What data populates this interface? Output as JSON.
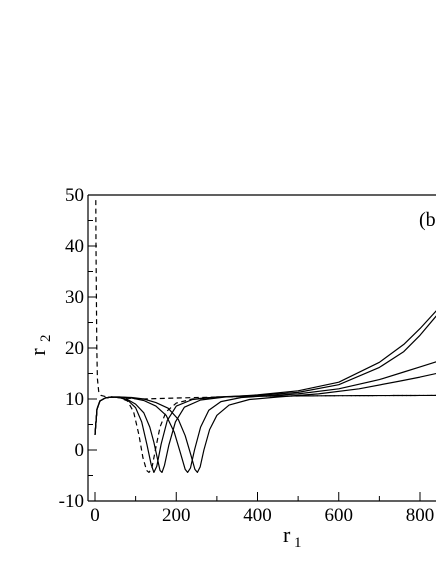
{
  "chart_data": {
    "type": "line",
    "title": "",
    "panel_label": "(b",
    "xlabel": "r",
    "xlabel_subscript": "1",
    "ylabel": "r",
    "ylabel_subscript": "2",
    "xlim": [
      -20,
      840
    ],
    "ylim": [
      -10,
      50
    ],
    "x_ticks": [
      0,
      200,
      400,
      600,
      800
    ],
    "x_tick_labels": [
      "0",
      "200",
      "400",
      "600",
      "800"
    ],
    "y_ticks": [
      -10,
      0,
      10,
      20,
      30,
      40,
      50
    ],
    "y_tick_labels": [
      "-10",
      "0",
      "10",
      "20",
      "30",
      "40",
      "50"
    ],
    "grid": false,
    "series": [
      {
        "style": "dashed",
        "points": [
          [
            2,
            49
          ],
          [
            2.5,
            40
          ],
          [
            3.5,
            30
          ],
          [
            4.5,
            20
          ],
          [
            6,
            14
          ],
          [
            9,
            11.5
          ],
          [
            15,
            10.7
          ],
          [
            30,
            10.4
          ],
          [
            50,
            10.3
          ],
          [
            70,
            10.2
          ],
          [
            90,
            10.1
          ],
          [
            120,
            10.0
          ],
          [
            200,
            10.2
          ],
          [
            400,
            10.55
          ],
          [
            600,
            10.65
          ],
          [
            840,
            10.7
          ]
        ]
      },
      {
        "style": "dashed",
        "points": [
          [
            0,
            3
          ],
          [
            5,
            8
          ],
          [
            12,
            9.6
          ],
          [
            25,
            10.2
          ],
          [
            40,
            10.4
          ],
          [
            60,
            10.3
          ],
          [
            80,
            9.6
          ],
          [
            95,
            7.5
          ],
          [
            108,
            3.0
          ],
          [
            118,
            -1.5
          ],
          [
            127,
            -4.0
          ],
          [
            133,
            -4.4
          ],
          [
            140,
            -3.5
          ],
          [
            150,
            0.5
          ],
          [
            160,
            4.5
          ],
          [
            175,
            7.5
          ],
          [
            200,
            9.2
          ],
          [
            240,
            10.0
          ],
          [
            300,
            10.4
          ],
          [
            400,
            10.55
          ],
          [
            600,
            10.65
          ],
          [
            840,
            10.7
          ]
        ]
      },
      {
        "style": "solid",
        "points": [
          [
            0,
            3
          ],
          [
            5,
            8
          ],
          [
            12,
            9.6
          ],
          [
            25,
            10.2
          ],
          [
            40,
            10.4
          ],
          [
            60,
            10.3
          ],
          [
            80,
            9.8
          ],
          [
            100,
            8.3
          ],
          [
            115,
            5.5
          ],
          [
            128,
            1.0
          ],
          [
            138,
            -2.8
          ],
          [
            145,
            -4.4
          ],
          [
            152,
            -3.2
          ],
          [
            163,
            1.2
          ],
          [
            178,
            5.8
          ],
          [
            200,
            8.6
          ],
          [
            240,
            9.9
          ],
          [
            300,
            10.4
          ],
          [
            400,
            10.7
          ],
          [
            500,
            11.3
          ],
          [
            600,
            12.8
          ],
          [
            700,
            16.2
          ],
          [
            760,
            19.3
          ],
          [
            800,
            22.5
          ],
          [
            840,
            26.3
          ]
        ]
      },
      {
        "style": "solid",
        "points": [
          [
            0,
            3
          ],
          [
            5,
            8
          ],
          [
            12,
            9.6
          ],
          [
            25,
            10.2
          ],
          [
            40,
            10.4
          ],
          [
            60,
            10.3
          ],
          [
            80,
            9.9
          ],
          [
            100,
            9.0
          ],
          [
            120,
            7.3
          ],
          [
            135,
            4.5
          ],
          [
            145,
            1.5
          ],
          [
            153,
            -1.5
          ],
          [
            160,
            -4.0
          ],
          [
            165,
            -4.4
          ],
          [
            171,
            -3.0
          ],
          [
            182,
            1.0
          ],
          [
            198,
            5.5
          ],
          [
            220,
            8.4
          ],
          [
            260,
            9.8
          ],
          [
            320,
            10.4
          ],
          [
            400,
            10.8
          ],
          [
            500,
            11.6
          ],
          [
            600,
            13.3
          ],
          [
            700,
            17.2
          ],
          [
            760,
            20.7
          ],
          [
            800,
            23.8
          ],
          [
            840,
            27.3
          ]
        ]
      },
      {
        "style": "solid",
        "points": [
          [
            0,
            3
          ],
          [
            5,
            8
          ],
          [
            12,
            9.6
          ],
          [
            25,
            10.2
          ],
          [
            40,
            10.4
          ],
          [
            60,
            10.4
          ],
          [
            90,
            10.2
          ],
          [
            120,
            9.7
          ],
          [
            150,
            8.6
          ],
          [
            175,
            6.8
          ],
          [
            195,
            3.5
          ],
          [
            210,
            -0.5
          ],
          [
            222,
            -3.8
          ],
          [
            228,
            -4.4
          ],
          [
            235,
            -3.5
          ],
          [
            245,
            0.0
          ],
          [
            260,
            4.5
          ],
          [
            280,
            7.8
          ],
          [
            310,
            9.5
          ],
          [
            360,
            10.3
          ],
          [
            420,
            10.6
          ],
          [
            500,
            11.0
          ],
          [
            600,
            12.0
          ],
          [
            700,
            13.8
          ],
          [
            760,
            15.3
          ],
          [
            800,
            16.3
          ],
          [
            840,
            17.3
          ]
        ]
      },
      {
        "style": "solid",
        "points": [
          [
            0,
            3
          ],
          [
            5,
            8
          ],
          [
            12,
            9.6
          ],
          [
            25,
            10.2
          ],
          [
            40,
            10.4
          ],
          [
            60,
            10.4
          ],
          [
            90,
            10.3
          ],
          [
            120,
            10.0
          ],
          [
            150,
            9.3
          ],
          [
            180,
            8.2
          ],
          [
            205,
            6.0
          ],
          [
            222,
            2.8
          ],
          [
            236,
            -1.0
          ],
          [
            246,
            -3.8
          ],
          [
            252,
            -4.4
          ],
          [
            259,
            -3.3
          ],
          [
            268,
            0.0
          ],
          [
            282,
            4.0
          ],
          [
            300,
            6.8
          ],
          [
            330,
            8.8
          ],
          [
            380,
            9.9
          ],
          [
            450,
            10.4
          ],
          [
            550,
            11.0
          ],
          [
            650,
            12.0
          ],
          [
            750,
            13.5
          ],
          [
            800,
            14.3
          ],
          [
            840,
            15.0
          ]
        ]
      }
    ]
  }
}
